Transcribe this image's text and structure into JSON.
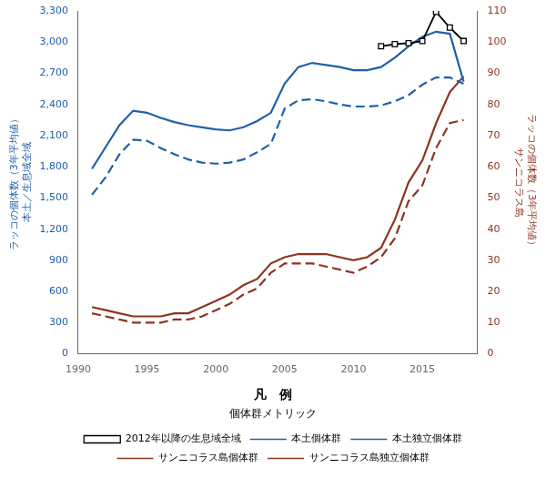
{
  "chart_data": {
    "type": "line",
    "ylabel": "ラッコの個体数（3年平均値）\n本土／生息域全域",
    "y2label": "ラッコの個体数（3年平均値）\nサンニコラス島",
    "legend_title": "凡　例",
    "legend_subtitle": "個体群メトリック",
    "legend": "bottom",
    "grid": false,
    "xlim": [
      1990,
      2019
    ],
    "xticks": [
      1990,
      1995,
      2000,
      2005,
      2010,
      2015
    ],
    "ylim": [
      0,
      3300
    ],
    "yticks": [
      0,
      300,
      600,
      900,
      {
        "value": 1200,
        "label": "1,200"
      },
      {
        "value": 1500,
        "label": "1,500"
      },
      {
        "value": 1800,
        "label": "1,800"
      },
      {
        "value": 2100,
        "label": "2,100"
      },
      {
        "value": 2400,
        "label": "2,400"
      },
      {
        "value": 2700,
        "label": "2,700"
      },
      {
        "value": 3000,
        "label": "3,000"
      },
      {
        "value": 3300,
        "label": "3,300"
      }
    ],
    "y2lim": [
      0,
      110
    ],
    "y2ticks": [
      0,
      10,
      20,
      30,
      40,
      50,
      60,
      70,
      80,
      90,
      100,
      110
    ],
    "series": [
      {
        "name": "2012年以降の生息域全域",
        "color": "#000000",
        "axis": "y",
        "line_style": "solid",
        "marker": "square",
        "x": [
          2012,
          2013,
          2014,
          2015,
          2016,
          2017,
          2018
        ],
        "values": [
          2960,
          2980,
          2990,
          3010,
          3290,
          3140,
          3010
        ]
      },
      {
        "name": "本土個体群",
        "color": "#2060a8",
        "axis": "y",
        "line_style": "solid",
        "marker": "none",
        "x": [
          1991,
          1992,
          1993,
          1994,
          1995,
          1996,
          1997,
          1998,
          1999,
          2000,
          2001,
          2002,
          2003,
          2004,
          2005,
          2006,
          2007,
          2008,
          2009,
          2010,
          2011,
          2012,
          2013,
          2014,
          2015,
          2016,
          2017,
          2018
        ],
        "values": [
          1780,
          1990,
          2200,
          2340,
          2320,
          2270,
          2230,
          2200,
          2180,
          2160,
          2150,
          2180,
          2240,
          2320,
          2600,
          2760,
          2800,
          2780,
          2760,
          2730,
          2730,
          2760,
          2850,
          2960,
          3050,
          3100,
          3080,
          2620
        ]
      },
      {
        "name": "本土独立個体群",
        "color": "#2060a8",
        "axis": "y",
        "line_style": "dashed",
        "marker": "none",
        "x": [
          1991,
          1992,
          1993,
          1994,
          1995,
          1996,
          1997,
          1998,
          1999,
          2000,
          2001,
          2002,
          2003,
          2004,
          2005,
          2006,
          2007,
          2008,
          2009,
          2010,
          2011,
          2012,
          2013,
          2014,
          2015,
          2016,
          2017,
          2018
        ],
        "values": [
          1530,
          1700,
          1920,
          2060,
          2050,
          1980,
          1920,
          1870,
          1840,
          1830,
          1840,
          1870,
          1940,
          2020,
          2360,
          2440,
          2450,
          2430,
          2400,
          2380,
          2380,
          2390,
          2430,
          2490,
          2590,
          2660,
          2660,
          2600
        ]
      },
      {
        "name": "サンニコラス島個体群",
        "color": "#8b3520",
        "axis": "y2",
        "line_style": "solid",
        "marker": "none",
        "x": [
          1991,
          1992,
          1993,
          1994,
          1995,
          1996,
          1997,
          1998,
          1999,
          2000,
          2001,
          2002,
          2003,
          2004,
          2005,
          2006,
          2007,
          2008,
          2009,
          2010,
          2011,
          2012,
          2013,
          2014,
          2015,
          2016,
          2017,
          2018
        ],
        "values": [
          15,
          14,
          13,
          12,
          12,
          12,
          13,
          13,
          15,
          17,
          19,
          22,
          24,
          29,
          31,
          32,
          32,
          32,
          31,
          30,
          31,
          34,
          43,
          55,
          62,
          74,
          84,
          89
        ]
      },
      {
        "name": "サンニコラス島独立個体群",
        "color": "#8b3520",
        "axis": "y2",
        "line_style": "dashed",
        "marker": "none",
        "x": [
          1991,
          1992,
          1993,
          1994,
          1995,
          1996,
          1997,
          1998,
          1999,
          2000,
          2001,
          2002,
          2003,
          2004,
          2005,
          2006,
          2007,
          2008,
          2009,
          2010,
          2011,
          2012,
          2013,
          2014,
          2015,
          2016,
          2017,
          2018
        ],
        "values": [
          13,
          12,
          11,
          10,
          10,
          10,
          11,
          11,
          12,
          14,
          16,
          19,
          21,
          26,
          29,
          29,
          29,
          28,
          27,
          26,
          28,
          31,
          37,
          49,
          54,
          66,
          74,
          75
        ]
      }
    ]
  }
}
